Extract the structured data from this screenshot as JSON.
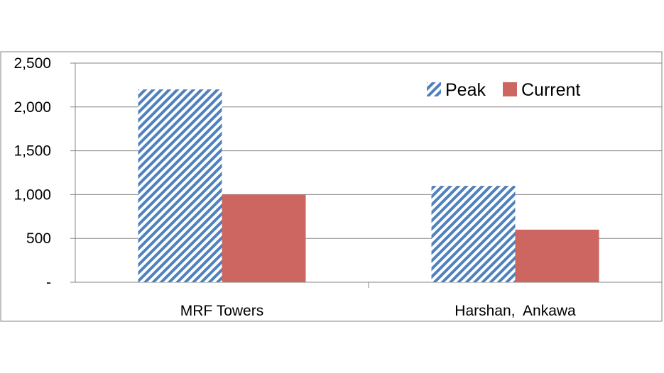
{
  "chart_data": {
    "type": "bar",
    "title": "",
    "xlabel": "",
    "ylabel": "",
    "categories": [
      "MRF Towers",
      "Harshan,  Ankawa"
    ],
    "series": [
      {
        "name": "Peak",
        "values": [
          2200,
          1100
        ],
        "color": "#4f81bd",
        "pattern": "diagonal-hatch"
      },
      {
        "name": "Current",
        "values": [
          1000,
          600
        ],
        "color": "#cd6560",
        "pattern": "solid"
      }
    ],
    "ylim": [
      0,
      2500
    ],
    "yticks": [
      0,
      500,
      1000,
      1500,
      2000,
      2500
    ],
    "ytick_labels": [
      "-",
      "500",
      "1,000",
      "1,500",
      "2,000",
      "2,500"
    ],
    "grid": true,
    "legend_position": "top-right"
  },
  "colors": {
    "gridline": "#868686",
    "frame": "#868686"
  }
}
